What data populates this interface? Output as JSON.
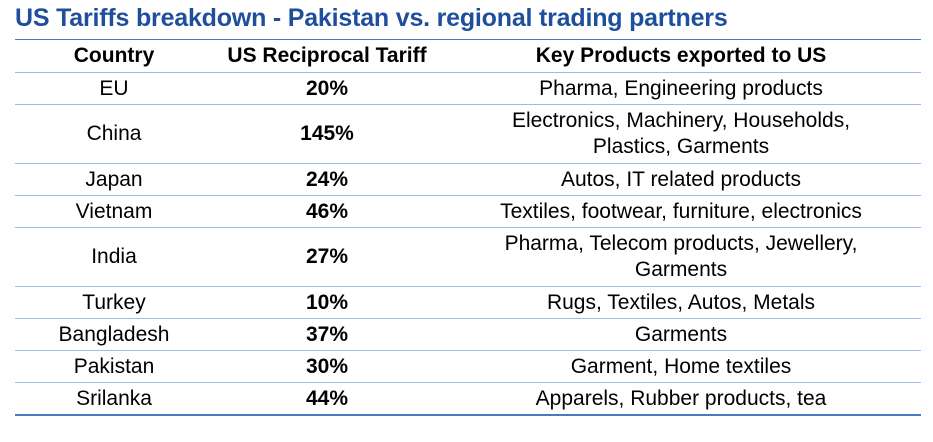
{
  "title": "US Tariffs breakdown - Pakistan vs. regional trading partners",
  "headers": {
    "country": "Country",
    "tariff": "US Reciprocal Tariff",
    "products": "Key Products exported to US"
  },
  "rows": [
    {
      "country": "EU",
      "tariff": "20%",
      "products_line1": "Pharma, Engineering products",
      "products_line2": ""
    },
    {
      "country": "China",
      "tariff": "145%",
      "products_line1": "Electronics, Machinery, Households,",
      "products_line2": "Plastics, Garments"
    },
    {
      "country": "Japan",
      "tariff": "24%",
      "products_line1": "Autos, IT related products",
      "products_line2": ""
    },
    {
      "country": "Vietnam",
      "tariff": "46%",
      "products_line1": "Textiles, footwear, furniture, electronics",
      "products_line2": ""
    },
    {
      "country": "India",
      "tariff": "27%",
      "products_line1": "Pharma, Telecom products, Jewellery,",
      "products_line2": "Garments"
    },
    {
      "country": "Turkey",
      "tariff": "10%",
      "products_line1": "Rugs, Textiles, Autos, Metals",
      "products_line2": ""
    },
    {
      "country": "Bangladesh",
      "tariff": "37%",
      "products_line1": "Garments",
      "products_line2": ""
    },
    {
      "country": "Pakistan",
      "tariff": "30%",
      "products_line1": "Garment, Home textiles",
      "products_line2": ""
    },
    {
      "country": "Srilanka",
      "tariff": "44%",
      "products_line1": "Apparels, Rubber products, tea",
      "products_line2": ""
    }
  ],
  "colors": {
    "title": "#1f4e9c",
    "rule": "#4a78c2",
    "row_divider": "#9dbbe6"
  }
}
